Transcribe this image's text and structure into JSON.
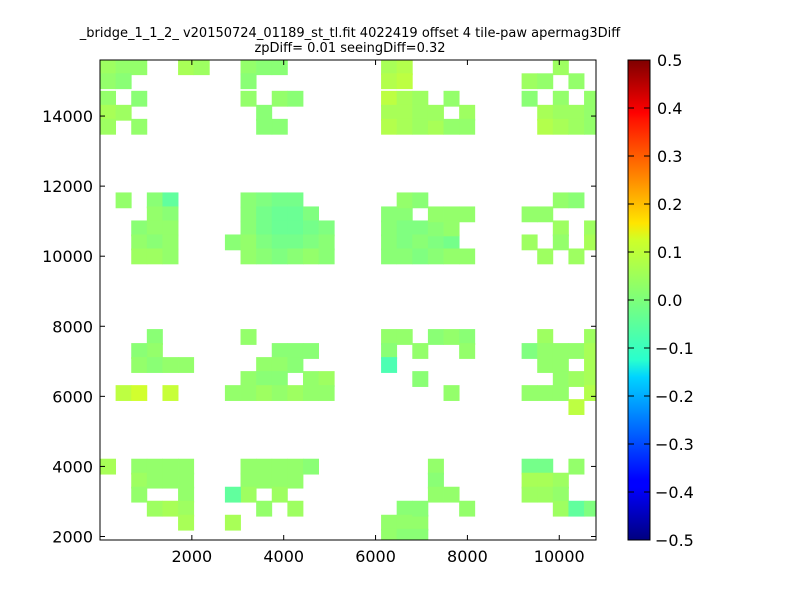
{
  "chart_data": {
    "type": "heatmap",
    "title_line1": "_bridge_1_1_2_ v20150724_01189_st_tl.fit 4022419 offset 4 tile-paw apermag3Diff",
    "title_line2": "zpDiff= 0.01 seeingDiff=0.32",
    "xlabel": "",
    "ylabel": "",
    "xlim": [
      0,
      10800
    ],
    "ylim": [
      1900,
      15600
    ],
    "x_ticks": [
      2000,
      4000,
      6000,
      8000,
      10000
    ],
    "y_ticks": [
      2000,
      4000,
      6000,
      8000,
      10000,
      12000,
      14000
    ],
    "colorbar": {
      "colormap": "jet",
      "min": -0.5,
      "max": 0.5,
      "ticks": [
        "0.5",
        "0.4",
        "0.3",
        "0.2",
        "0.1",
        "0.0",
        "−0.1",
        "−0.2",
        "−0.3",
        "−0.4",
        "−0.5"
      ]
    },
    "cell_size": [
      340,
      440
    ],
    "cells": [
      [
        0,
        15400,
        0.03
      ],
      [
        0,
        15000,
        0.02
      ],
      [
        0,
        14500,
        0.02
      ],
      [
        0,
        14100,
        0.04
      ],
      [
        0,
        13700,
        0.03
      ],
      [
        340,
        15400,
        0.02
      ],
      [
        680,
        15400,
        0.02
      ],
      [
        340,
        15000,
        0.01
      ],
      [
        680,
        14500,
        0.01
      ],
      [
        340,
        14100,
        0.03
      ],
      [
        680,
        13700,
        0.02
      ],
      [
        1700,
        15400,
        0.04
      ],
      [
        2040,
        15400,
        0.03
      ],
      [
        3060,
        15400,
        0.02
      ],
      [
        3400,
        15400,
        0.01
      ],
      [
        3740,
        15400,
        0.01
      ],
      [
        3060,
        15000,
        0.01
      ],
      [
        3060,
        14500,
        0.02
      ],
      [
        3400,
        14100,
        0.01
      ],
      [
        3740,
        14500,
        0.02
      ],
      [
        4080,
        14500,
        0.01
      ],
      [
        3740,
        13700,
        0.01
      ],
      [
        3400,
        13700,
        0.01
      ],
      [
        6120,
        15400,
        0.04
      ],
      [
        6460,
        15400,
        0.05
      ],
      [
        6120,
        15000,
        0.05
      ],
      [
        6460,
        15000,
        0.06
      ],
      [
        6120,
        14500,
        0.06
      ],
      [
        6460,
        14500,
        0.04
      ],
      [
        6800,
        14500,
        0.03
      ],
      [
        6120,
        14100,
        0.04
      ],
      [
        6460,
        14100,
        0.04
      ],
      [
        6800,
        14100,
        0.03
      ],
      [
        6120,
        13700,
        0.05
      ],
      [
        6460,
        13700,
        0.04
      ],
      [
        6800,
        13700,
        0.03
      ],
      [
        7140,
        13700,
        0.04
      ],
      [
        7140,
        14100,
        0.03
      ],
      [
        7480,
        14500,
        0.02
      ],
      [
        7820,
        14100,
        0.03
      ],
      [
        7820,
        13700,
        0.02
      ],
      [
        7480,
        13700,
        0.02
      ],
      [
        9180,
        15000,
        0.03
      ],
      [
        9520,
        15000,
        0.02
      ],
      [
        9860,
        15400,
        0.03
      ],
      [
        9860,
        14500,
        0.02
      ],
      [
        9520,
        14100,
        0.04
      ],
      [
        9860,
        14100,
        0.03
      ],
      [
        10200,
        14100,
        0.03
      ],
      [
        10540,
        14100,
        0.02
      ],
      [
        9520,
        13700,
        0.05
      ],
      [
        9860,
        13700,
        0.04
      ],
      [
        10200,
        13700,
        0.03
      ],
      [
        10540,
        13700,
        0.02
      ],
      [
        10200,
        15000,
        0.02
      ],
      [
        10540,
        14500,
        0.02
      ],
      [
        9180,
        14500,
        0.01
      ],
      [
        340,
        11600,
        0.02
      ],
      [
        1020,
        11600,
        0.01
      ],
      [
        1360,
        11600,
        -0.03
      ],
      [
        1020,
        11200,
        0.02
      ],
      [
        1360,
        11200,
        0.01
      ],
      [
        680,
        10800,
        0.01
      ],
      [
        1020,
        10800,
        0.02
      ],
      [
        1360,
        10800,
        0.02
      ],
      [
        680,
        10400,
        0.02
      ],
      [
        1020,
        10400,
        0.01
      ],
      [
        1360,
        10400,
        0.02
      ],
      [
        680,
        10000,
        0.03
      ],
      [
        1020,
        10000,
        0.03
      ],
      [
        1360,
        10000,
        0.02
      ],
      [
        3060,
        11600,
        0.01
      ],
      [
        3400,
        11600,
        0.0
      ],
      [
        3740,
        11600,
        -0.01
      ],
      [
        4080,
        11600,
        -0.01
      ],
      [
        3060,
        11200,
        0.01
      ],
      [
        3400,
        11200,
        -0.01
      ],
      [
        3740,
        11200,
        -0.02
      ],
      [
        4080,
        11200,
        -0.02
      ],
      [
        4420,
        11200,
        0.0
      ],
      [
        3060,
        10800,
        0.01
      ],
      [
        3400,
        10800,
        -0.01
      ],
      [
        3740,
        10800,
        -0.02
      ],
      [
        4080,
        10800,
        -0.02
      ],
      [
        4420,
        10800,
        -0.01
      ],
      [
        4760,
        10800,
        0.0
      ],
      [
        2720,
        10400,
        0.01
      ],
      [
        3060,
        10400,
        0.02
      ],
      [
        3400,
        10400,
        0.0
      ],
      [
        3740,
        10400,
        -0.01
      ],
      [
        4080,
        10400,
        -0.01
      ],
      [
        4420,
        10400,
        0.0
      ],
      [
        4760,
        10400,
        0.01
      ],
      [
        3060,
        10000,
        0.02
      ],
      [
        3400,
        10000,
        0.01
      ],
      [
        3740,
        10000,
        0.0
      ],
      [
        4080,
        10000,
        0.01
      ],
      [
        4420,
        10000,
        0.02
      ],
      [
        4760,
        10000,
        0.01
      ],
      [
        6120,
        11200,
        0.01
      ],
      [
        6460,
        11200,
        0.01
      ],
      [
        6460,
        11600,
        0.02
      ],
      [
        6800,
        11600,
        0.01
      ],
      [
        6120,
        10800,
        0.01
      ],
      [
        6460,
        10800,
        0.0
      ],
      [
        6800,
        10800,
        0.0
      ],
      [
        6120,
        10400,
        0.01
      ],
      [
        6460,
        10400,
        0.0
      ],
      [
        6800,
        10400,
        0.01
      ],
      [
        7140,
        10400,
        0.0
      ],
      [
        7480,
        10400,
        -0.01
      ],
      [
        7140,
        10800,
        0.01
      ],
      [
        7140,
        11200,
        0.02
      ],
      [
        7480,
        11200,
        0.02
      ],
      [
        7820,
        11200,
        0.02
      ],
      [
        7480,
        10800,
        0.02
      ],
      [
        6120,
        10000,
        0.01
      ],
      [
        6460,
        10000,
        0.01
      ],
      [
        6800,
        10000,
        0.0
      ],
      [
        7140,
        10000,
        0.01
      ],
      [
        7480,
        10000,
        0.02
      ],
      [
        7820,
        10000,
        0.02
      ],
      [
        9180,
        11200,
        0.02
      ],
      [
        9520,
        11200,
        0.02
      ],
      [
        9860,
        11600,
        0.02
      ],
      [
        10200,
        11600,
        0.01
      ],
      [
        9860,
        10800,
        0.03
      ],
      [
        9860,
        10400,
        0.02
      ],
      [
        9180,
        10400,
        0.03
      ],
      [
        9520,
        10000,
        0.03
      ],
      [
        10200,
        10000,
        0.03
      ],
      [
        10540,
        10800,
        0.03
      ],
      [
        10540,
        10400,
        0.04
      ],
      [
        1020,
        7700,
        0.01
      ],
      [
        1020,
        7300,
        0.02
      ],
      [
        680,
        7300,
        0.01
      ],
      [
        680,
        6900,
        0.02
      ],
      [
        1020,
        6900,
        0.01
      ],
      [
        1360,
        6900,
        0.02
      ],
      [
        1700,
        6900,
        0.02
      ],
      [
        3060,
        7700,
        0.02
      ],
      [
        3740,
        7300,
        0.01
      ],
      [
        4080,
        7300,
        0.01
      ],
      [
        4420,
        7300,
        0.01
      ],
      [
        3400,
        6900,
        0.02
      ],
      [
        3740,
        6900,
        0.02
      ],
      [
        4080,
        6900,
        0.01
      ],
      [
        3060,
        6500,
        0.02
      ],
      [
        3400,
        6500,
        0.01
      ],
      [
        3740,
        6500,
        0.01
      ],
      [
        4420,
        6500,
        0.02
      ],
      [
        4760,
        6500,
        0.03
      ],
      [
        2720,
        6100,
        0.02
      ],
      [
        3060,
        6100,
        0.02
      ],
      [
        3400,
        6100,
        0.03
      ],
      [
        3740,
        6100,
        0.02
      ],
      [
        4080,
        6100,
        0.03
      ],
      [
        4420,
        6100,
        0.02
      ],
      [
        4760,
        6100,
        0.02
      ],
      [
        6120,
        7700,
        0.02
      ],
      [
        6460,
        7700,
        0.02
      ],
      [
        6120,
        7300,
        0.01
      ],
      [
        6120,
        6900,
        -0.05
      ],
      [
        6800,
        7300,
        0.02
      ],
      [
        7140,
        7700,
        0.01
      ],
      [
        7480,
        7700,
        0.02
      ],
      [
        7820,
        7700,
        0.01
      ],
      [
        7820,
        7300,
        0.02
      ],
      [
        6800,
        6500,
        0.01
      ],
      [
        7480,
        6100,
        0.02
      ],
      [
        9520,
        7700,
        0.03
      ],
      [
        9180,
        7300,
        0.0
      ],
      [
        9520,
        7300,
        0.02
      ],
      [
        9860,
        7300,
        0.02
      ],
      [
        10200,
        7300,
        0.02
      ],
      [
        10540,
        7700,
        0.03
      ],
      [
        10540,
        7300,
        0.04
      ],
      [
        9520,
        6900,
        0.02
      ],
      [
        9860,
        6900,
        0.02
      ],
      [
        9860,
        6500,
        0.02
      ],
      [
        10200,
        6500,
        0.03
      ],
      [
        10540,
        6500,
        0.04
      ],
      [
        10540,
        6900,
        0.04
      ],
      [
        9180,
        6100,
        0.02
      ],
      [
        9520,
        6100,
        0.02
      ],
      [
        9860,
        6100,
        0.02
      ],
      [
        10540,
        6100,
        0.05
      ],
      [
        10200,
        5700,
        0.06
      ],
      [
        340,
        6100,
        0.06
      ],
      [
        680,
        6100,
        0.08
      ],
      [
        1360,
        6100,
        0.07
      ],
      [
        0,
        4000,
        0.04
      ],
      [
        680,
        4000,
        0.02
      ],
      [
        1020,
        4000,
        0.02
      ],
      [
        1360,
        4000,
        0.02
      ],
      [
        1700,
        4000,
        0.02
      ],
      [
        680,
        3600,
        0.03
      ],
      [
        1020,
        3600,
        0.02
      ],
      [
        1360,
        3600,
        0.02
      ],
      [
        1700,
        3600,
        0.02
      ],
      [
        680,
        3200,
        0.02
      ],
      [
        1700,
        3200,
        0.02
      ],
      [
        1020,
        2800,
        0.03
      ],
      [
        1360,
        2800,
        0.04
      ],
      [
        1700,
        2800,
        0.03
      ],
      [
        1700,
        2400,
        0.04
      ],
      [
        3060,
        4000,
        0.02
      ],
      [
        3400,
        4000,
        0.02
      ],
      [
        3740,
        4000,
        0.02
      ],
      [
        4080,
        4000,
        0.02
      ],
      [
        4420,
        4000,
        0.01
      ],
      [
        3060,
        3600,
        0.02
      ],
      [
        3400,
        3600,
        0.02
      ],
      [
        3740,
        3600,
        0.02
      ],
      [
        4080,
        3600,
        0.02
      ],
      [
        3060,
        3200,
        0.03
      ],
      [
        3740,
        3200,
        0.03
      ],
      [
        2720,
        3200,
        -0.03
      ],
      [
        2720,
        2400,
        0.04
      ],
      [
        3400,
        2800,
        0.02
      ],
      [
        4080,
        2800,
        0.03
      ],
      [
        7140,
        4000,
        0.02
      ],
      [
        7140,
        3600,
        0.01
      ],
      [
        7140,
        3200,
        0.02
      ],
      [
        7480,
        3200,
        0.02
      ],
      [
        6460,
        2800,
        0.01
      ],
      [
        6120,
        2400,
        0.02
      ],
      [
        6460,
        2400,
        0.02
      ],
      [
        6800,
        2400,
        0.02
      ],
      [
        6800,
        2800,
        0.01
      ],
      [
        7820,
        2800,
        0.02
      ],
      [
        6120,
        2000,
        0.02
      ],
      [
        6460,
        2000,
        0.01
      ],
      [
        6800,
        2000,
        0.01
      ],
      [
        9180,
        4000,
        -0.01
      ],
      [
        9520,
        4000,
        -0.01
      ],
      [
        9180,
        3600,
        0.04
      ],
      [
        9520,
        3600,
        0.04
      ],
      [
        9860,
        3600,
        0.03
      ],
      [
        9180,
        3200,
        0.03
      ],
      [
        9520,
        3200,
        0.03
      ],
      [
        9860,
        3200,
        0.02
      ],
      [
        10200,
        4000,
        0.02
      ],
      [
        9860,
        2800,
        0.03
      ],
      [
        10200,
        2800,
        -0.03
      ],
      [
        10540,
        2800,
        0.0
      ]
    ]
  }
}
